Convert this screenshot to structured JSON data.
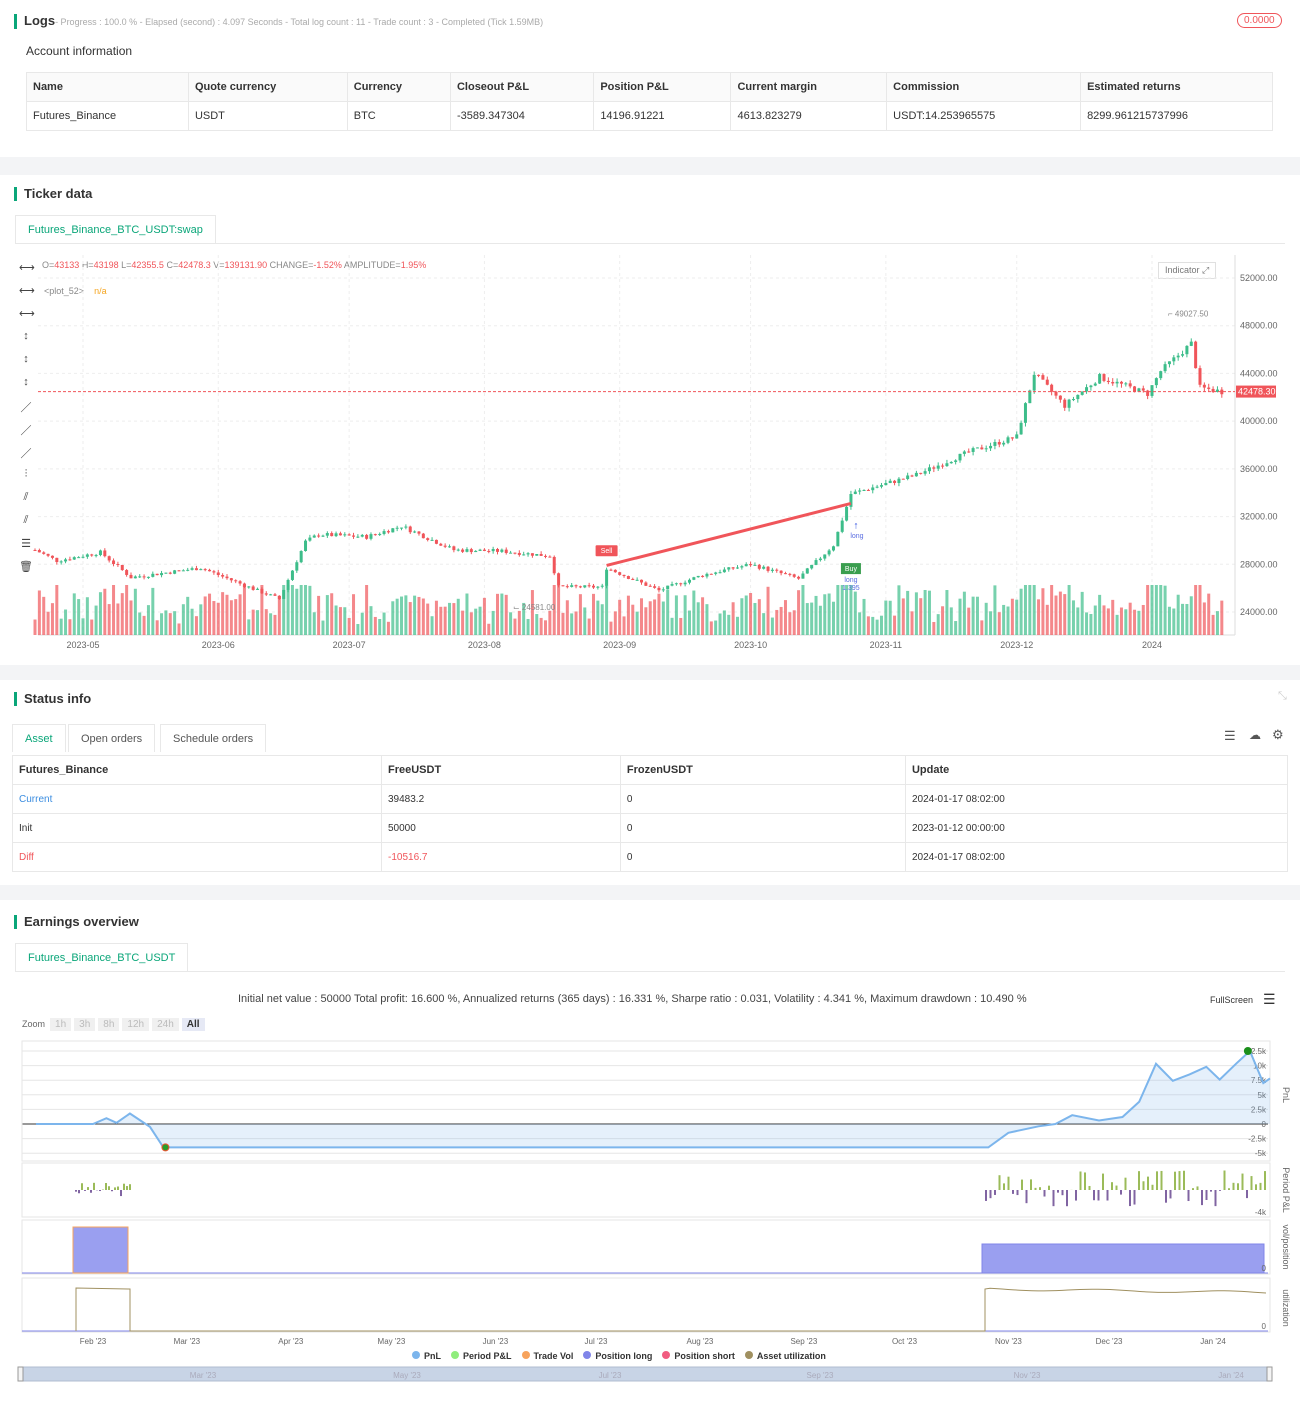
{
  "logs": {
    "title": "Logs",
    "summary": "- Progress : 100.0 % - Elapsed (second) : 4.097  Seconds - Total log count : 11 - Trade count : 3 - Completed (Tick 1.59MB)",
    "badge": "0.0000"
  },
  "account": {
    "title": "Account information",
    "columns": [
      "Name",
      "Quote currency",
      "Currency",
      "Closeout P&L",
      "Position P&L",
      "Current margin",
      "Commission",
      "Estimated returns"
    ],
    "row": [
      "Futures_Binance",
      "USDT",
      "BTC",
      "-3589.347304",
      "14196.91221",
      "4613.823279",
      "USDT:14.253965575",
      "8299.961215737996"
    ]
  },
  "ticker": {
    "title": "Ticker data",
    "tab": "Futures_Binance_BTC_USDT:swap",
    "indicator_btn": "Indicator",
    "ohlc": {
      "o_label": "O=",
      "o": "43133",
      "h_label": "H=",
      "h": "43198",
      "l_label": "L=",
      "l": "42355.5",
      "c_label": "C=",
      "c": "42478.3",
      "v_label": "V=",
      "v": "139131.90",
      "chg_label": "CHANGE=",
      "chg": "-1.52%",
      "amp_label": "AMPLITUDE=",
      "amp": "1.95%"
    },
    "plot_label": "<plot_52>",
    "plot_value": "n/a",
    "last_price": "42478.30",
    "high_marker": "49027.50",
    "low_marker": "24581.00",
    "sell_label": "Sell",
    "buy_label": "Buy",
    "long_label": "long",
    "long_label2": "long",
    "buy_qty": "1.395"
  },
  "chart_data": [
    {
      "type": "candlestick",
      "y_ticks": [
        "52000.00",
        "48000.00",
        "44000.00",
        "40000.00",
        "36000.00",
        "32000.00",
        "28000.00",
        "24000.00"
      ],
      "x_ticks": [
        "2023-05",
        "2023-06",
        "2023-07",
        "2023-08",
        "2023-09",
        "2023-10",
        "2023-11",
        "2023-12",
        "2024"
      ],
      "ylim": [
        23000,
        53000
      ],
      "close_keypoints": [
        [
          "2023-04-20",
          29200
        ],
        [
          "2023-04-25",
          28300
        ],
        [
          "2023-05-05",
          29000
        ],
        [
          "2023-05-12",
          26900
        ],
        [
          "2023-05-28",
          27700
        ],
        [
          "2023-06-10",
          25800
        ],
        [
          "2023-06-15",
          25100
        ],
        [
          "2023-06-21",
          29900
        ],
        [
          "2023-06-24",
          30500
        ],
        [
          "2023-07-05",
          30300
        ],
        [
          "2023-07-13",
          31200
        ],
        [
          "2023-07-25",
          29200
        ],
        [
          "2023-08-05",
          29100
        ],
        [
          "2023-08-16",
          28700
        ],
        [
          "2023-08-18",
          26100
        ],
        [
          "2023-08-28",
          26100
        ],
        [
          "2023-08-29",
          27700
        ],
        [
          "2023-09-10",
          25800
        ],
        [
          "2023-09-20",
          27100
        ],
        [
          "2023-10-01",
          28000
        ],
        [
          "2023-10-12",
          26800
        ],
        [
          "2023-10-20",
          29600
        ],
        [
          "2023-10-24",
          33900
        ],
        [
          "2023-11-08",
          35500
        ],
        [
          "2023-11-20",
          37400
        ],
        [
          "2023-12-01",
          38700
        ],
        [
          "2023-12-05",
          44000
        ],
        [
          "2023-12-12",
          41300
        ],
        [
          "2023-12-20",
          43700
        ],
        [
          "2023-12-31",
          42300
        ],
        [
          "2024-01-03",
          44200
        ],
        [
          "2024-01-10",
          46500
        ],
        [
          "2024-01-12",
          42800
        ],
        [
          "2024-01-17",
          42478
        ]
      ],
      "last_price": 42478.3,
      "trade_line": {
        "from": [
          "2023-08-29",
          27900
        ],
        "to": [
          "2023-10-24",
          33100
        ]
      }
    },
    {
      "type": "area",
      "title": "",
      "x_ticks": [
        "Feb '23",
        "Mar '23",
        "Apr '23",
        "May '23",
        "Jun '23",
        "Jul '23",
        "Aug '23",
        "Sep '23",
        "Oct '23",
        "Nov '23",
        "Dec '23",
        "Jan '24"
      ],
      "pnl_ticks": [
        "12.5k",
        "10k",
        "7.5k",
        "5k",
        "2.5k",
        "0",
        "-2.5k",
        "-5k"
      ],
      "period_tick": "-4k",
      "vol_tick": "0",
      "util_tick": "0",
      "axis_titles": [
        "PnL",
        "Period P&L",
        "vol/position",
        "utilization"
      ],
      "pnl": [
        [
          "2023-01-15",
          0
        ],
        [
          "2023-02-01",
          0
        ],
        [
          "2023-02-05",
          1000
        ],
        [
          "2023-02-08",
          200
        ],
        [
          "2023-02-12",
          1800
        ],
        [
          "2023-02-18",
          -500
        ],
        [
          "2023-02-22",
          -4000
        ],
        [
          "2023-10-26",
          -4000
        ],
        [
          "2023-11-01",
          -1500
        ],
        [
          "2023-11-10",
          -400
        ],
        [
          "2023-11-15",
          0
        ],
        [
          "2023-11-20",
          1500
        ],
        [
          "2023-11-28",
          600
        ],
        [
          "2023-12-05",
          1200
        ],
        [
          "2023-12-10",
          3800
        ],
        [
          "2023-12-15",
          10300
        ],
        [
          "2023-12-20",
          7400
        ],
        [
          "2023-12-25",
          8500
        ],
        [
          "2023-12-30",
          9800
        ],
        [
          "2024-01-03",
          7600
        ],
        [
          "2024-01-08",
          10400
        ],
        [
          "2024-01-12",
          12500
        ],
        [
          "2024-01-16",
          7000
        ],
        [
          "2024-01-18",
          7800
        ]
      ],
      "position_periods": [
        [
          "2023-02-01",
          "2023-02-19"
        ],
        [
          "2023-10-26",
          "2024-01-18"
        ]
      ]
    }
  ],
  "status": {
    "title": "Status info",
    "tabs": [
      "Asset",
      "Open orders",
      "Schedule orders"
    ],
    "columns": [
      "Futures_Binance",
      "FreeUSDT",
      "FrozenUSDT",
      "Update"
    ],
    "rows": [
      [
        "Current",
        "39483.2",
        "0",
        "2024-01-17 08:02:00"
      ],
      [
        "Init",
        "50000",
        "0",
        "2023-01-12 00:00:00"
      ],
      [
        "Diff",
        "-10516.7",
        "0",
        "2024-01-17 08:02:00"
      ]
    ]
  },
  "earnings": {
    "title": "Earnings overview",
    "tab": "Futures_Binance_BTC_USDT",
    "summary": "Initial net value : 50000 Total profit: 16.600 %, Annualized returns (365 days) : 16.331 %, Sharpe ratio : 0.031, Volatility : 4.341 %, Maximum drawdown : 10.490 %",
    "fullscreen": "FullScreen",
    "zoom_label": "Zoom",
    "zoom_opts": [
      "1h",
      "3h",
      "8h",
      "12h",
      "24h",
      "All"
    ],
    "legend": [
      "PnL",
      "Period P&L",
      "Trade Vol",
      "Position long",
      "Position short",
      "Asset utilization"
    ],
    "legend_colors": [
      "#7cb5ec",
      "#90ed7d",
      "#f7a35c",
      "#8085e9",
      "#f15c80",
      "#a09060"
    ],
    "navigator_ticks": [
      "Mar '23",
      "May '23",
      "Jul '23",
      "Sep '23",
      "Nov '23",
      "Jan '24"
    ]
  },
  "colors": {
    "up": "#3dbd8a",
    "down": "#f0555a",
    "accent": "#0aa679"
  }
}
